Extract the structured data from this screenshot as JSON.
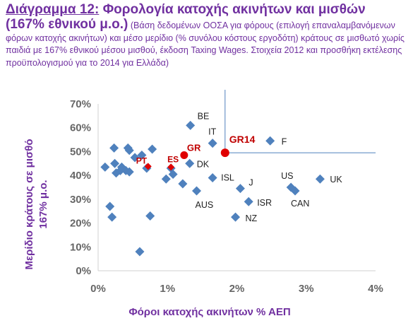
{
  "title": {
    "prefix": "Διάγραμμα 12:",
    "main": "Φορολογία κατοχής ακινήτων και μισθών",
    "main2": "(167% εθνικού μ.ο.)",
    "note": "(Βάση δεδομένων ΟΟΣΑ για φόρους (επιλογή επαναλαμβανόμενων φόρων κατοχής ακινήτων) και μέσο μερίδιο (% συνόλου κόστους εργοδότη) κράτους σε μισθωτό χωρίς παιδιά με 167% εθνικού μέσου μισθού, έκδοση Taxing Wages. Στοιχεία 2012 και προσθήκη εκτέλεσης προϋπολογισμού για το 2014 για Ελλάδα)"
  },
  "chart_data": {
    "type": "scatter",
    "xlabel": "Φόροι κατοχής ακινήτων % ΑΕΠ",
    "ylabel": "Μερίδιο κράτους σε μισθό 167% μ.ο.",
    "ylabel_lines": [
      "Μερίδιο κράτους σε μισθό",
      "167% μ.ο."
    ],
    "xlim": [
      0,
      4
    ],
    "ylim": [
      0,
      70
    ],
    "x_ticks": [
      "0%",
      "1%",
      "2%",
      "3%",
      "4%"
    ],
    "y_ticks": [
      "0%",
      "10%",
      "20%",
      "30%",
      "40%",
      "50%",
      "60%",
      "70%"
    ],
    "grid": false,
    "marker": "diamond",
    "colors": {
      "points": "#4F81BD",
      "highlight": "#E00000",
      "axis_text": "#7030A0",
      "ticks": "#666666"
    },
    "points": [
      {
        "x": 0.1,
        "y": 43.5,
        "label": ""
      },
      {
        "x": 0.17,
        "y": 27.0,
        "label": ""
      },
      {
        "x": 0.2,
        "y": 22.5,
        "label": ""
      },
      {
        "x": 0.23,
        "y": 51.5,
        "label": ""
      },
      {
        "x": 0.24,
        "y": 45.0,
        "label": ""
      },
      {
        "x": 0.26,
        "y": 41.0,
        "label": ""
      },
      {
        "x": 0.32,
        "y": 42.0,
        "label": ""
      },
      {
        "x": 0.34,
        "y": 43.5,
        "label": ""
      },
      {
        "x": 0.4,
        "y": 42.0,
        "label": ""
      },
      {
        "x": 0.43,
        "y": 51.5,
        "label": ""
      },
      {
        "x": 0.45,
        "y": 50.5,
        "label": ""
      },
      {
        "x": 0.45,
        "y": 41.5,
        "label": ""
      },
      {
        "x": 0.53,
        "y": 47.5,
        "label": ""
      },
      {
        "x": 0.6,
        "y": 8.0,
        "label": ""
      },
      {
        "x": 0.63,
        "y": 48.5,
        "label": ""
      },
      {
        "x": 0.7,
        "y": 43.0,
        "label": ""
      },
      {
        "x": 0.75,
        "y": 23.0,
        "label": ""
      },
      {
        "x": 0.78,
        "y": 51.0,
        "label": ""
      },
      {
        "x": 0.98,
        "y": 38.5,
        "label": ""
      },
      {
        "x": 1.05,
        "y": 43.0,
        "label": ""
      },
      {
        "x": 1.08,
        "y": 40.5,
        "label": ""
      },
      {
        "x": 1.22,
        "y": 36.5,
        "label": ""
      },
      {
        "x": 1.32,
        "y": 45.0,
        "label": "DK"
      },
      {
        "x": 1.33,
        "y": 61.0,
        "label": "BE"
      },
      {
        "x": 1.42,
        "y": 33.5,
        "label": "AUS"
      },
      {
        "x": 1.65,
        "y": 53.5,
        "label": "IT"
      },
      {
        "x": 1.65,
        "y": 39.0,
        "label": "ISL"
      },
      {
        "x": 1.98,
        "y": 22.5,
        "label": "NZ"
      },
      {
        "x": 2.05,
        "y": 34.5,
        "label": "J"
      },
      {
        "x": 2.17,
        "y": 29.0,
        "label": "ISR"
      },
      {
        "x": 2.48,
        "y": 54.5,
        "label": "F"
      },
      {
        "x": 2.78,
        "y": 35.0,
        "label": "US"
      },
      {
        "x": 2.84,
        "y": 33.5,
        "label": "CAN"
      },
      {
        "x": 3.2,
        "y": 38.5,
        "label": "UK"
      }
    ],
    "highlights": [
      {
        "x": 0.72,
        "y": 43.8,
        "label": "PT"
      },
      {
        "x": 1.05,
        "y": 43.5,
        "label": "ES"
      },
      {
        "x": 1.24,
        "y": 48.5,
        "label": "GR"
      },
      {
        "x": 1.83,
        "y": 49.5,
        "label": "GR14"
      }
    ]
  }
}
